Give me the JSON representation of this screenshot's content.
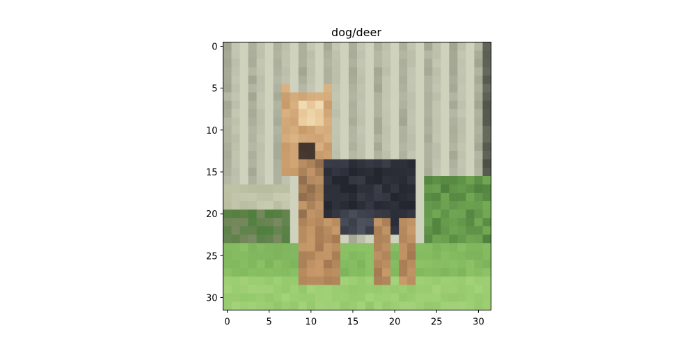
{
  "figure": {
    "title": "dog/deer"
  },
  "image": {
    "description_free": true,
    "x_ticks": [
      "0",
      "5",
      "10",
      "15",
      "20",
      "25",
      "30"
    ],
    "y_ticks": [
      "0",
      "5",
      "10",
      "15",
      "20",
      "25",
      "30"
    ],
    "x_tick_values": [
      0,
      5,
      10,
      15,
      20,
      25,
      30
    ],
    "y_tick_values": [
      0,
      5,
      10,
      15,
      20,
      25,
      30
    ],
    "extent": [
      -0.5,
      31.5
    ],
    "pixel_grid": [
      32,
      32
    ]
  },
  "colors": {
    "fence_light": "#cfd2bd",
    "fence_mid": "#b3b6a2",
    "fence_dark": "#8f927f",
    "grass_light": "#93c86a",
    "grass_mid": "#74ab55",
    "grass_dark": "#4f7f3e",
    "dog_tan": "#c89a6a",
    "dog_light_tan": "#e7c596",
    "dog_black": "#3a3d48",
    "dog_dark": "#22252d",
    "frame": "#000000"
  }
}
